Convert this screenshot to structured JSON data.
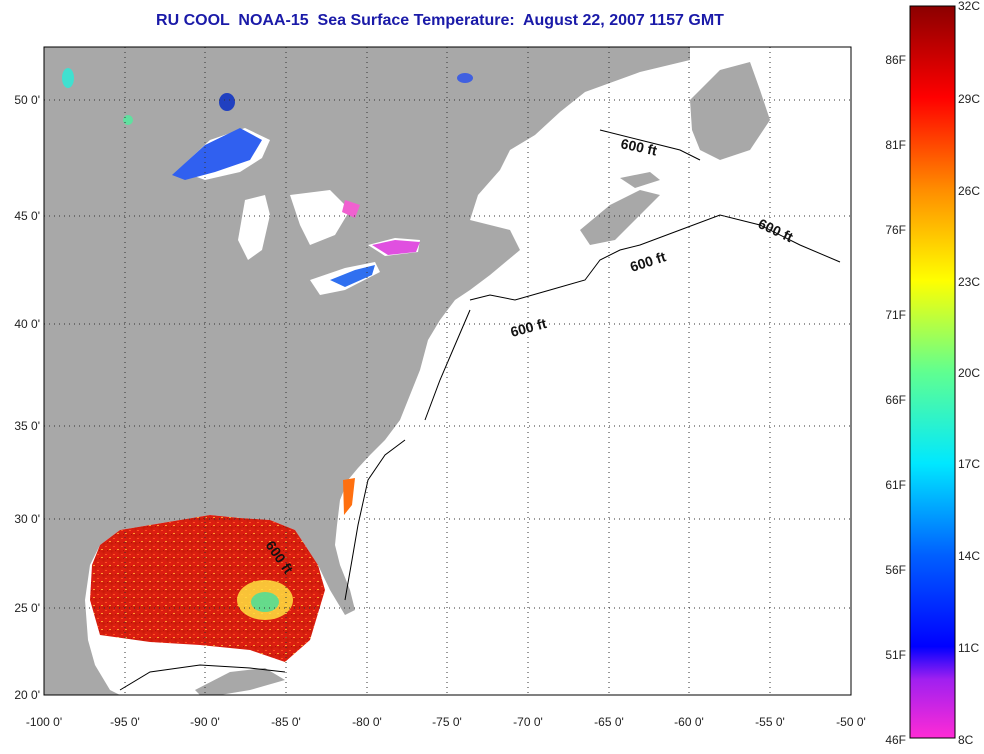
{
  "title": "RU COOL  NOAA-15  Sea Surface Temperature:  August 22, 2007 1157 GMT",
  "map": {
    "lon_range": [
      -100,
      -50
    ],
    "lat_range": [
      20,
      52.5
    ],
    "lon_ticks": [
      "-100 0'",
      "-95 0'",
      "-90 0'",
      "-85 0'",
      "-80 0'",
      "-75 0'",
      "-70 0'",
      "-65 0'",
      "-60 0'",
      "-55 0'",
      "-50 0'"
    ],
    "lat_ticks": [
      "20 0'",
      "25 0'",
      "30 0'",
      "35 0'",
      "40 0'",
      "45 0'",
      "50 0'"
    ],
    "grid": "dotted",
    "land_color": "#a8a8a8",
    "ocean_no_data_color": "#ffffff",
    "depth_contour_labels": [
      "600 ft",
      "600 ft",
      "600 ft",
      "600 ft",
      "600 ft"
    ]
  },
  "colorbar": {
    "celsius_labels": [
      "32C",
      "29C",
      "26C",
      "23C",
      "20C",
      "17C",
      "14C",
      "11C",
      "8C"
    ],
    "fahrenheit_labels": [
      "86F",
      "81F",
      "76F",
      "71F",
      "66F",
      "61F",
      "56F",
      "51F",
      "46F"
    ],
    "colors": [
      "#800000",
      "#ff0000",
      "#ff8000",
      "#ffff00",
      "#80ff80",
      "#00ffff",
      "#0080ff",
      "#0000ff",
      "#8000ff",
      "#ff40c0"
    ]
  }
}
